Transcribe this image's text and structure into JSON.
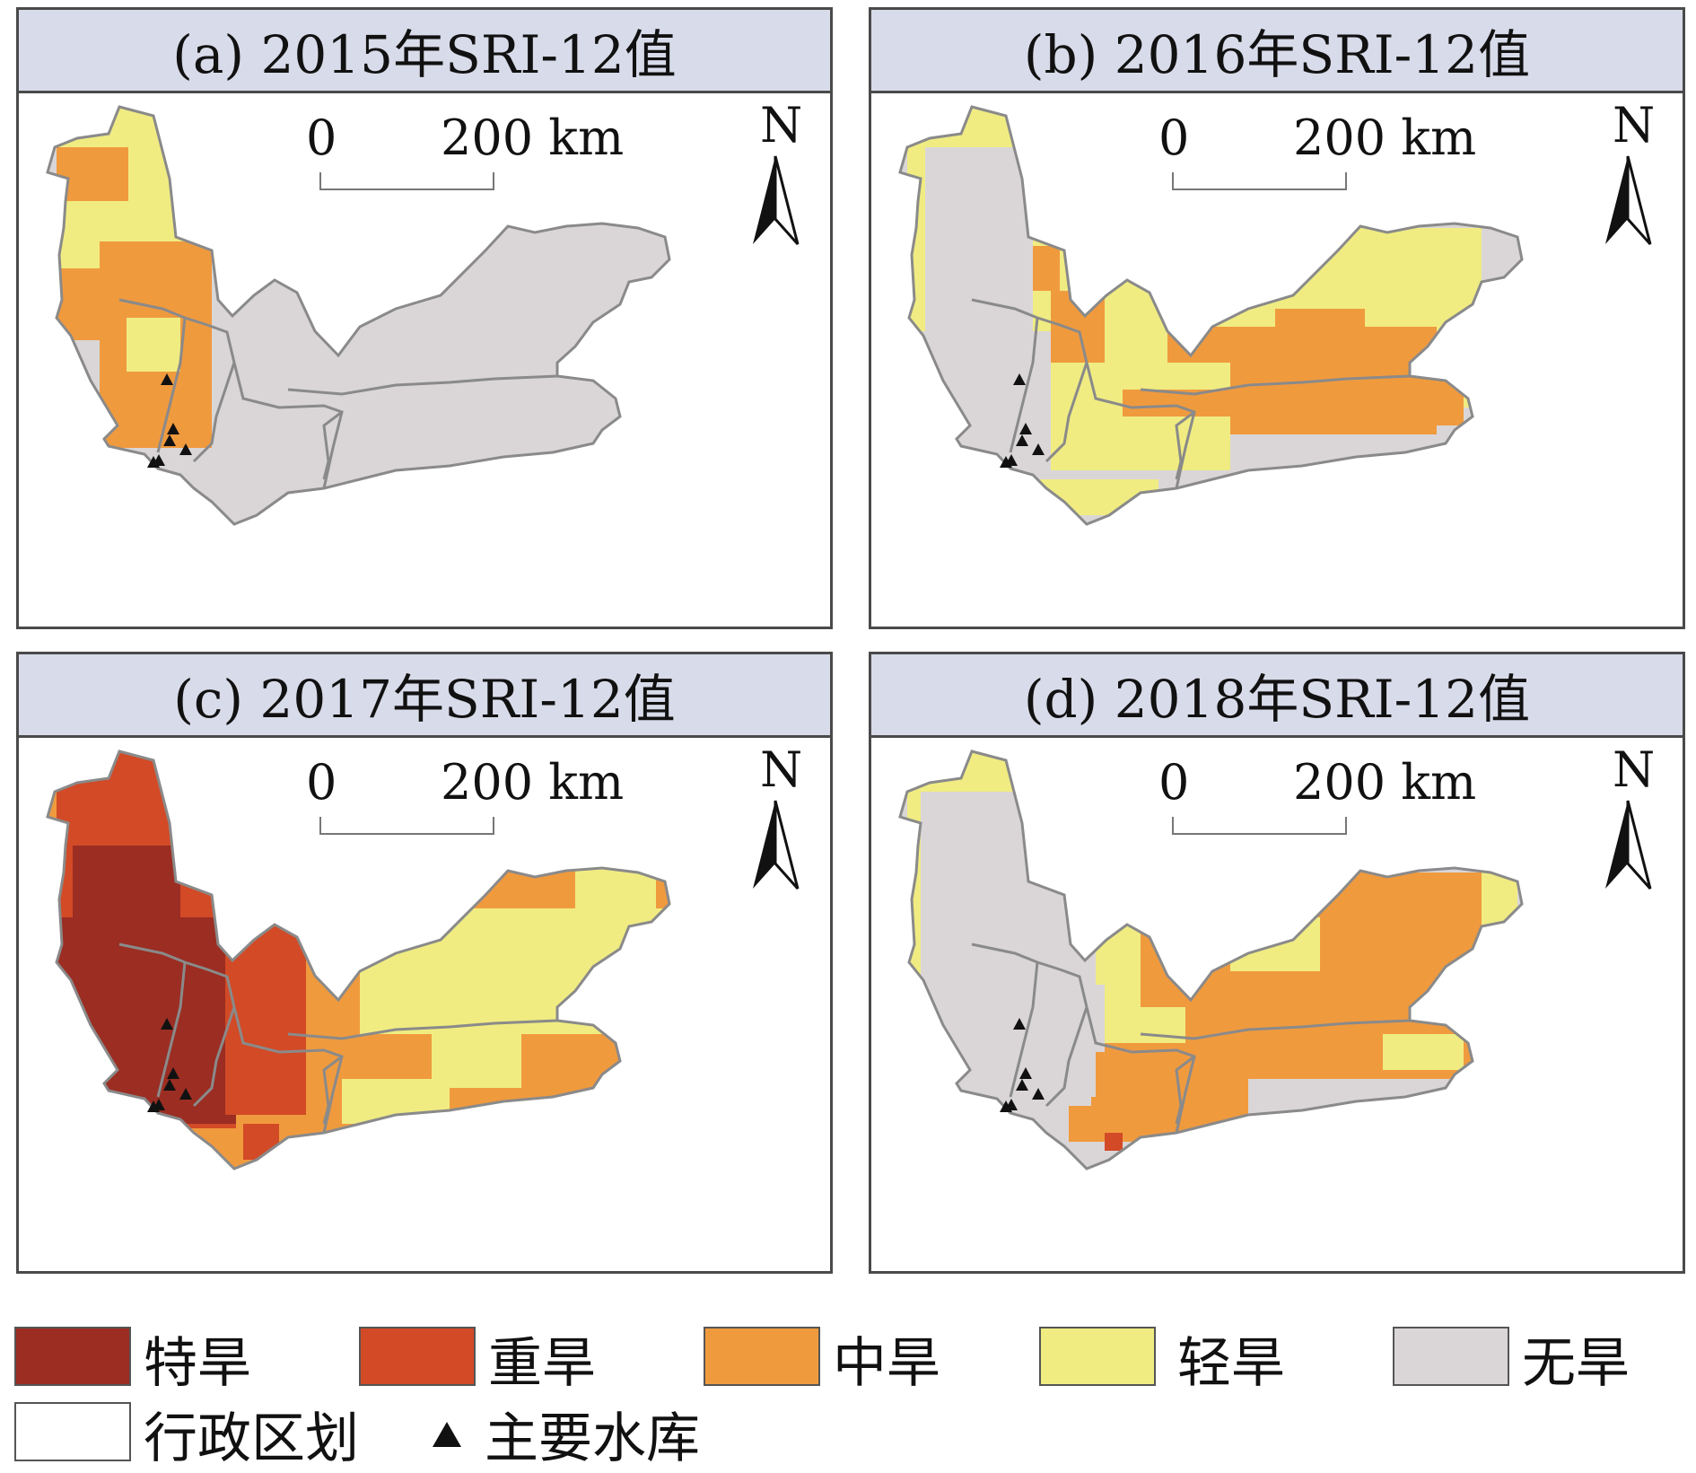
{
  "panels": [
    {
      "title": "(a) 2015年SRI-12值",
      "scale_zero": "0",
      "scale_distance": "200 km",
      "north_label": "N"
    },
    {
      "title": "(b) 2016年SRI-12值",
      "scale_zero": "0",
      "scale_distance": "200 km",
      "north_label": "N"
    },
    {
      "title": "(c) 2017年SRI-12值",
      "scale_zero": "0",
      "scale_distance": "200 km",
      "north_label": "N"
    },
    {
      "title": "(d) 2018年SRI-12值",
      "scale_zero": "0",
      "scale_distance": "200 km",
      "north_label": "N"
    }
  ],
  "legend": {
    "items": [
      {
        "label": "特旱",
        "color": "#9b2d22"
      },
      {
        "label": "重旱",
        "color": "#d24a26"
      },
      {
        "label": "中旱",
        "color": "#f09a3e"
      },
      {
        "label": "轻旱",
        "color": "#f0ec82"
      },
      {
        "label": "无旱",
        "color": "#dad6d8"
      },
      {
        "label": "行政区划",
        "color": "#ffffff"
      },
      {
        "label": "主要水库",
        "color": "#111111",
        "icon": "triangle-icon"
      }
    ]
  },
  "colors": {
    "extreme": "#9b2d22",
    "severe": "#d24a26",
    "moderate": "#f09a3e",
    "mild": "#f0ec82",
    "none": "#dad6d8",
    "boundary": "#8a8a8a",
    "header_bg": "#d8dbe9"
  }
}
